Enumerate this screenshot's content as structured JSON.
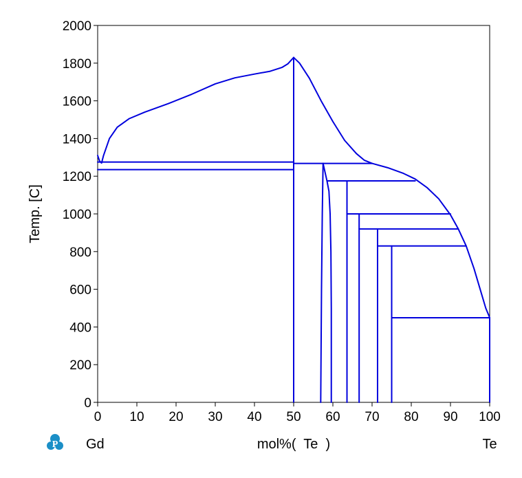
{
  "chart_data": {
    "type": "line",
    "title": "",
    "xlabel": "mol%(  Te  )",
    "ylabel": "Temp.  [C]",
    "left_element": "Gd",
    "right_element": "Te",
    "xlim": [
      0,
      100
    ],
    "ylim": [
      0,
      2000
    ],
    "x_ticks": [
      0,
      10,
      20,
      30,
      40,
      50,
      60,
      70,
      80,
      90,
      100
    ],
    "y_ticks": [
      0,
      200,
      400,
      600,
      800,
      1000,
      1200,
      1400,
      1600,
      1800,
      2000
    ],
    "grid": false,
    "line_color": "#0000dd",
    "logo_icon": "thermo-calc-p-logo-icon",
    "logo_color": "#1b8fc7",
    "curves": [
      {
        "id": "liquidus-gd-side",
        "points": [
          [
            0,
            1310
          ],
          [
            0.5,
            1280
          ],
          [
            1,
            1270
          ],
          [
            1.5,
            1310
          ],
          [
            3,
            1400
          ],
          [
            5,
            1460
          ],
          [
            8,
            1505
          ],
          [
            12,
            1540
          ],
          [
            18,
            1585
          ],
          [
            24,
            1635
          ],
          [
            30,
            1690
          ],
          [
            35,
            1722
          ],
          [
            40,
            1742
          ],
          [
            44,
            1757
          ],
          [
            47,
            1777
          ],
          [
            48.5,
            1796
          ],
          [
            50,
            1830
          ]
        ]
      },
      {
        "id": "liquidus-te-side-upper",
        "points": [
          [
            50,
            1830
          ],
          [
            51.5,
            1800
          ],
          [
            54,
            1720
          ],
          [
            57,
            1600
          ],
          [
            60,
            1490
          ],
          [
            63,
            1390
          ],
          [
            66,
            1320
          ],
          [
            68,
            1285
          ],
          [
            70,
            1268
          ]
        ]
      },
      {
        "id": "liquidus-te-side-lower",
        "points": [
          [
            70,
            1268
          ],
          [
            74,
            1245
          ],
          [
            78,
            1215
          ],
          [
            81,
            1185
          ],
          [
            84,
            1140
          ],
          [
            87,
            1080
          ],
          [
            90,
            995
          ],
          [
            92,
            920
          ],
          [
            94,
            830
          ],
          [
            96,
            710
          ],
          [
            98,
            570
          ],
          [
            99,
            500
          ],
          [
            100,
            450
          ]
        ]
      },
      {
        "id": "eutectic-gd-1275",
        "points": [
          [
            0,
            1275
          ],
          [
            50,
            1275
          ]
        ]
      },
      {
        "id": "transition-1235",
        "points": [
          [
            0,
            1235
          ],
          [
            50,
            1235
          ]
        ]
      },
      {
        "id": "gdte-line",
        "points": [
          [
            50,
            0
          ],
          [
            50,
            1830
          ]
        ]
      },
      {
        "id": "eutectic-1268",
        "points": [
          [
            50,
            1268
          ],
          [
            70,
            1268
          ]
        ]
      },
      {
        "id": "phase-boundary-left",
        "points": [
          [
            57.5,
            1268
          ],
          [
            57.3,
            1000
          ],
          [
            57.1,
            600
          ],
          [
            57,
            300
          ],
          [
            56.9,
            0
          ]
        ]
      },
      {
        "id": "phase-boundary-right",
        "points": [
          [
            57.5,
            1268
          ],
          [
            58.5,
            1175
          ],
          [
            59,
            1120
          ],
          [
            59.3,
            1000
          ],
          [
            59.5,
            800
          ],
          [
            59.6,
            500
          ],
          [
            59.6,
            0
          ]
        ]
      },
      {
        "id": "peritectic-1175",
        "points": [
          [
            58.5,
            1175
          ],
          [
            81,
            1175
          ]
        ]
      },
      {
        "id": "compound-63",
        "points": [
          [
            63.6,
            0
          ],
          [
            63.6,
            1175
          ]
        ]
      },
      {
        "id": "peritectic-1000",
        "points": [
          [
            63.6,
            1000
          ],
          [
            90,
            1000
          ]
        ]
      },
      {
        "id": "compound-67",
        "points": [
          [
            66.7,
            0
          ],
          [
            66.7,
            1000
          ]
        ]
      },
      {
        "id": "peritectic-920",
        "points": [
          [
            66.7,
            920
          ],
          [
            92,
            920
          ]
        ]
      },
      {
        "id": "compound-71",
        "points": [
          [
            71.4,
            0
          ],
          [
            71.4,
            920
          ]
        ]
      },
      {
        "id": "peritectic-830",
        "points": [
          [
            71.4,
            830
          ],
          [
            94,
            830
          ]
        ]
      },
      {
        "id": "compound-75",
        "points": [
          [
            75,
            0
          ],
          [
            75,
            830
          ]
        ]
      },
      {
        "id": "eutectic-449",
        "points": [
          [
            75,
            449
          ],
          [
            100,
            449
          ]
        ]
      },
      {
        "id": "te-edge",
        "points": [
          [
            100,
            0
          ],
          [
            100,
            450
          ]
        ]
      }
    ]
  }
}
